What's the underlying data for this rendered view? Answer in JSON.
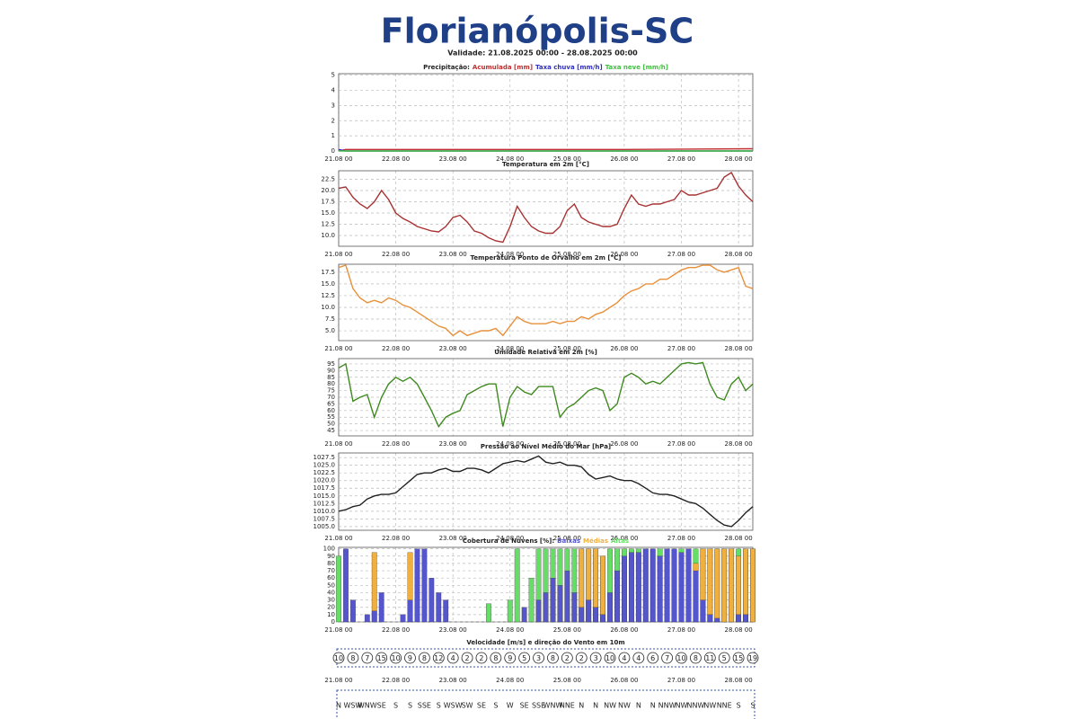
{
  "header": {
    "title": "Florianópolis-SC",
    "subtitle": "Validade: 21.08.2025 00:00 - 28.08.2025 00:00"
  },
  "chart_data": [
    {
      "type": "line",
      "title": "Precipitação:",
      "legend": "title",
      "x": [
        0,
        3,
        120,
        174
      ],
      "xlim": [
        0,
        174
      ],
      "xticks": [
        {
          "value": 0,
          "label": "21.08 00"
        },
        {
          "value": 24,
          "label": "22.08 00"
        },
        {
          "value": 48,
          "label": "23.08 00"
        },
        {
          "value": 72,
          "label": "24.08 00"
        },
        {
          "value": 96,
          "label": "25.08 00"
        },
        {
          "value": 120,
          "label": "26.08 00"
        },
        {
          "value": 144,
          "label": "27.08 00"
        },
        {
          "value": 168,
          "label": "28.08 00"
        }
      ],
      "ylim": [
        0,
        5.1
      ],
      "yticks": [
        0,
        1,
        2,
        3,
        4,
        5
      ],
      "grid": true,
      "series": [
        {
          "name": "Acumulada [mm]",
          "color": "#c03030",
          "values": [
            0,
            0.1,
            0.1,
            0.15
          ]
        },
        {
          "name": "Taxa chuva [mm/h]",
          "color": "#3030c0",
          "values": [
            0.1,
            0,
            0,
            0
          ]
        },
        {
          "name": "Taxa neve [mm/h]",
          "color": "#40c040",
          "values": [
            0,
            0,
            0,
            0
          ]
        }
      ]
    },
    {
      "type": "line",
      "title": "Temperatura em 2m [°C]",
      "color": "#a83232",
      "x": [
        0,
        3,
        6,
        9,
        12,
        15,
        18,
        21,
        24,
        27,
        30,
        33,
        36,
        39,
        42,
        45,
        48,
        51,
        54,
        57,
        60,
        63,
        66,
        69,
        72,
        75,
        78,
        81,
        84,
        87,
        90,
        93,
        96,
        99,
        102,
        105,
        108,
        111,
        114,
        117,
        120,
        123,
        126,
        129,
        132,
        135,
        138,
        141,
        144,
        147,
        150,
        153,
        156,
        159,
        162,
        165,
        168,
        171,
        174
      ],
      "xlim": [
        0,
        174
      ],
      "xticks": [
        {
          "value": 0,
          "label": "21.08 00"
        },
        {
          "value": 24,
          "label": "22.08 00"
        },
        {
          "value": 48,
          "label": "23.08 00"
        },
        {
          "value": 72,
          "label": "24.08 00"
        },
        {
          "value": 96,
          "label": "25.08 00"
        },
        {
          "value": 120,
          "label": "26.08 00"
        },
        {
          "value": 144,
          "label": "27.08 00"
        },
        {
          "value": 168,
          "label": "28.08 00"
        }
      ],
      "ylim": [
        7.6,
        24.4
      ],
      "yticks": [
        {
          "value": 10,
          "label": "10.0"
        },
        12.5,
        {
          "value": 15,
          "label": "15.0"
        },
        17.5,
        {
          "value": 20,
          "label": "20.0"
        },
        22.5
      ],
      "grid": true,
      "values": [
        20.5,
        20.8,
        18.5,
        17,
        16,
        17.5,
        20,
        18,
        15,
        13.8,
        13,
        12,
        11.5,
        11,
        10.8,
        12,
        14,
        14.5,
        13,
        11,
        10.5,
        9.5,
        8.8,
        8.5,
        12,
        16.5,
        14,
        12,
        11,
        10.5,
        10.5,
        12,
        15.5,
        17,
        14,
        13,
        12.5,
        12,
        12,
        12.5,
        16,
        19,
        17,
        16.5,
        17,
        17,
        17.5,
        18,
        20,
        19,
        19,
        19.5,
        20,
        20.5,
        23,
        24,
        21,
        19,
        17.5
      ]
    },
    {
      "type": "line",
      "title": "Temperatura Ponto de Orvalho em 2m [°C]",
      "color": "#e8903a",
      "x": [
        0,
        3,
        6,
        9,
        12,
        15,
        18,
        21,
        24,
        27,
        30,
        33,
        36,
        39,
        42,
        45,
        48,
        51,
        54,
        57,
        60,
        63,
        66,
        69,
        72,
        75,
        78,
        81,
        84,
        87,
        90,
        93,
        96,
        99,
        102,
        105,
        108,
        111,
        114,
        117,
        120,
        123,
        126,
        129,
        132,
        135,
        138,
        141,
        144,
        147,
        150,
        153,
        156,
        159,
        162,
        165,
        168,
        171,
        174
      ],
      "xlim": [
        0,
        174
      ],
      "xticks": [
        {
          "value": 0,
          "label": "21.08 00"
        },
        {
          "value": 24,
          "label": "22.08 00"
        },
        {
          "value": 48,
          "label": "23.08 00"
        },
        {
          "value": 72,
          "label": "24.08 00"
        },
        {
          "value": 96,
          "label": "25.08 00"
        },
        {
          "value": 120,
          "label": "26.08 00"
        },
        {
          "value": 144,
          "label": "27.08 00"
        },
        {
          "value": 168,
          "label": "28.08 00"
        }
      ],
      "ylim": [
        2.9,
        19.2
      ],
      "yticks": [
        {
          "value": 5,
          "label": "5.0"
        },
        7.5,
        {
          "value": 10,
          "label": "10.0"
        },
        12.5,
        {
          "value": 15,
          "label": "15.0"
        },
        17.5
      ],
      "grid": true,
      "values": [
        18.5,
        19,
        14,
        12,
        11,
        11.5,
        11,
        12,
        11.5,
        10.5,
        10,
        9,
        8,
        7,
        6,
        5.5,
        4,
        5,
        4,
        4.5,
        5,
        5,
        5.5,
        4,
        6,
        8,
        7,
        6.5,
        6.5,
        6.5,
        7,
        6.5,
        7,
        7,
        8,
        7.5,
        8.5,
        9,
        10,
        11,
        12.5,
        13.5,
        14,
        15,
        15,
        16,
        16,
        17,
        18,
        18.5,
        18.5,
        19,
        19,
        18,
        17.5,
        18,
        18.5,
        14.5,
        14
      ]
    },
    {
      "type": "line",
      "title": "Umidade Relativa em 2m [%]",
      "color": "#3f8a1f",
      "x": [
        0,
        3,
        6,
        9,
        12,
        15,
        18,
        21,
        24,
        27,
        30,
        33,
        36,
        39,
        42,
        45,
        48,
        51,
        54,
        57,
        60,
        63,
        66,
        69,
        72,
        75,
        78,
        81,
        84,
        87,
        90,
        93,
        96,
        99,
        102,
        105,
        108,
        111,
        114,
        117,
        120,
        123,
        126,
        129,
        132,
        135,
        138,
        141,
        144,
        147,
        150,
        153,
        156,
        159,
        162,
        165,
        168,
        171,
        174
      ],
      "xlim": [
        0,
        174
      ],
      "xticks": [
        {
          "value": 0,
          "label": "21.08 00"
        },
        {
          "value": 24,
          "label": "22.08 00"
        },
        {
          "value": 48,
          "label": "23.08 00"
        },
        {
          "value": 72,
          "label": "24.08 00"
        },
        {
          "value": 96,
          "label": "25.08 00"
        },
        {
          "value": 120,
          "label": "26.08 00"
        },
        {
          "value": 144,
          "label": "27.08 00"
        },
        {
          "value": 168,
          "label": "28.08 00"
        }
      ],
      "ylim": [
        41,
        99
      ],
      "yticks": [
        45,
        50,
        55,
        60,
        65,
        70,
        75,
        80,
        85,
        90,
        95
      ],
      "grid": true,
      "values": [
        92,
        95,
        67,
        70,
        72,
        55,
        70,
        80,
        85,
        82,
        85,
        80,
        70,
        60,
        48,
        55,
        58,
        60,
        72,
        75,
        78,
        80,
        80,
        48,
        70,
        78,
        74,
        72,
        78,
        78,
        78,
        55,
        62,
        65,
        70,
        75,
        77,
        75,
        60,
        65,
        85,
        88,
        85,
        80,
        82,
        80,
        85,
        90,
        95,
        96,
        95,
        96,
        80,
        70,
        68,
        80,
        85,
        75,
        80
      ]
    },
    {
      "type": "line",
      "title": "Pressão ao Nível Médio do Mar [hPa]",
      "color": "#222222",
      "x": [
        0,
        3,
        6,
        9,
        12,
        15,
        18,
        21,
        24,
        27,
        30,
        33,
        36,
        39,
        42,
        45,
        48,
        51,
        54,
        57,
        60,
        63,
        66,
        69,
        72,
        75,
        78,
        81,
        84,
        87,
        90,
        93,
        96,
        99,
        102,
        105,
        108,
        111,
        114,
        117,
        120,
        123,
        126,
        129,
        132,
        135,
        138,
        141,
        144,
        147,
        150,
        153,
        156,
        159,
        162,
        165,
        168,
        171,
        174
      ],
      "xlim": [
        0,
        174
      ],
      "xticks": [
        {
          "value": 0,
          "label": "21.08 00"
        },
        {
          "value": 24,
          "label": "22.08 00"
        },
        {
          "value": 48,
          "label": "23.08 00"
        },
        {
          "value": 72,
          "label": "24.08 00"
        },
        {
          "value": 96,
          "label": "25.08 00"
        },
        {
          "value": 120,
          "label": "26.08 00"
        },
        {
          "value": 144,
          "label": "27.08 00"
        },
        {
          "value": 168,
          "label": "28.08 00"
        }
      ],
      "ylim": [
        1003.8,
        1029
      ],
      "yticks": [
        {
          "value": 1005,
          "label": "1005.0"
        },
        1007.5,
        {
          "value": 1010,
          "label": "1010.0"
        },
        1012.5,
        {
          "value": 1015,
          "label": "1015.0"
        },
        1017.5,
        {
          "value": 1020,
          "label": "1020.0"
        },
        1022.5,
        {
          "value": 1025,
          "label": "1025.0"
        },
        1027.5
      ],
      "grid": true,
      "values": [
        1010,
        1010.5,
        1011.5,
        1012,
        1014,
        1015,
        1015.5,
        1015.5,
        1016,
        1018,
        1020,
        1022,
        1022.5,
        1022.5,
        1023.5,
        1024,
        1023,
        1023,
        1024,
        1024,
        1023.5,
        1022.5,
        1024,
        1025.5,
        1026,
        1026.5,
        1026,
        1027,
        1028,
        1026,
        1025.5,
        1026,
        1025,
        1025,
        1024.5,
        1022,
        1020.5,
        1021,
        1021.5,
        1020.5,
        1020,
        1020,
        1019,
        1017.5,
        1016,
        1015.5,
        1015.5,
        1015,
        1014,
        1013,
        1012.5,
        1011,
        1009,
        1007,
        1005.5,
        1005,
        1007,
        1009.5,
        1011.5
      ]
    },
    {
      "type": "bar",
      "title": "Cobertura de Nuvens [%]:",
      "legend": "title",
      "x": [
        0,
        3,
        6,
        9,
        12,
        15,
        18,
        21,
        24,
        27,
        30,
        33,
        36,
        39,
        42,
        45,
        48,
        51,
        54,
        57,
        60,
        63,
        66,
        69,
        72,
        75,
        78,
        81,
        84,
        87,
        90,
        93,
        96,
        99,
        102,
        105,
        108,
        111,
        114,
        117,
        120,
        123,
        126,
        129,
        132,
        135,
        138,
        141,
        144,
        147,
        150,
        153,
        156,
        159,
        162,
        165,
        168,
        171,
        174
      ],
      "xlim": [
        0,
        174
      ],
      "xticks": [
        {
          "value": 0,
          "label": "21.08 00"
        },
        {
          "value": 24,
          "label": "22.08 00"
        },
        {
          "value": 48,
          "label": "23.08 00"
        },
        {
          "value": 72,
          "label": "24.08 00"
        },
        {
          "value": 96,
          "label": "25.08 00"
        },
        {
          "value": 120,
          "label": "26.08 00"
        },
        {
          "value": 144,
          "label": "27.08 00"
        },
        {
          "value": 168,
          "label": "28.08 00"
        }
      ],
      "ylim": [
        0,
        102
      ],
      "yticks": [
        0,
        10,
        20,
        30,
        40,
        50,
        60,
        70,
        80,
        90,
        100
      ],
      "grid": true,
      "series": [
        {
          "name": "Altas",
          "color": "#66dd66",
          "values": [
            90,
            0,
            0,
            0,
            0,
            0,
            0,
            0,
            0,
            0,
            0,
            0,
            0,
            0,
            0,
            0,
            0,
            0,
            0,
            0,
            0,
            25,
            0,
            0,
            30,
            100,
            0,
            60,
            100,
            100,
            100,
            100,
            100,
            100,
            100,
            100,
            100,
            90,
            100,
            100,
            100,
            100,
            100,
            100,
            100,
            100,
            100,
            100,
            100,
            100,
            100,
            100,
            100,
            100,
            100,
            100,
            100,
            100,
            100
          ]
        },
        {
          "name": "Médias",
          "color": "#f0b040",
          "values": [
            0,
            0,
            0,
            0,
            0,
            95,
            0,
            0,
            0,
            0,
            95,
            0,
            0,
            0,
            0,
            0,
            0,
            0,
            0,
            0,
            0,
            0,
            0,
            0,
            0,
            0,
            0,
            0,
            0,
            0,
            0,
            0,
            0,
            0,
            100,
            100,
            100,
            90,
            10,
            0,
            0,
            0,
            0,
            0,
            0,
            0,
            0,
            0,
            0,
            0,
            80,
            100,
            100,
            100,
            100,
            100,
            90,
            100,
            100
          ]
        },
        {
          "name": "Baixas",
          "color": "#5555cc",
          "values": [
            0,
            100,
            30,
            0,
            10,
            15,
            40,
            0,
            0,
            10,
            30,
            100,
            100,
            60,
            40,
            30,
            0,
            0,
            0,
            0,
            0,
            0,
            0,
            0,
            0,
            0,
            20,
            0,
            30,
            40,
            60,
            50,
            70,
            40,
            20,
            30,
            20,
            10,
            40,
            70,
            90,
            95,
            95,
            100,
            100,
            90,
            100,
            100,
            95,
            100,
            70,
            30,
            10,
            5,
            0,
            0,
            10,
            10,
            0
          ]
        }
      ]
    },
    {
      "type": "wind",
      "title": "Velocidade [m/s] e direção do Vento em 10m",
      "x": [
        0,
        6,
        12,
        18,
        24,
        30,
        36,
        42,
        48,
        54,
        60,
        66,
        72,
        78,
        84,
        90,
        96,
        102,
        108,
        114,
        120,
        126,
        132,
        138,
        144,
        150,
        156,
        162,
        168,
        174
      ],
      "xlim": [
        0,
        174
      ],
      "xticks": [
        {
          "value": 0,
          "label": "21.08 00"
        },
        {
          "value": 24,
          "label": "22.08 00"
        },
        {
          "value": 48,
          "label": "23.08 00"
        },
        {
          "value": 72,
          "label": "24.08 00"
        },
        {
          "value": 96,
          "label": "25.08 00"
        },
        {
          "value": 120,
          "label": "26.08 00"
        },
        {
          "value": 144,
          "label": "27.08 00"
        },
        {
          "value": 168,
          "label": "28.08 00"
        }
      ],
      "values": [
        10,
        8,
        7,
        15,
        10,
        9,
        8,
        12,
        4,
        2,
        2,
        8,
        9,
        5,
        3,
        8,
        2,
        2,
        3,
        10,
        4,
        4,
        6,
        7,
        10,
        8,
        11,
        5,
        15,
        19
      ],
      "directions": [
        "N",
        "WSW",
        "WNW",
        "SE",
        "S",
        "S",
        "SSE",
        "S",
        "WSW",
        "SW",
        "SE",
        "S",
        "W",
        "SE",
        "SSE",
        "WNW",
        "NNE",
        "N",
        "N",
        "NW",
        "NW",
        "N",
        "N",
        "NNW",
        "NW",
        "NNW",
        "NW",
        "NNE",
        "S",
        "S"
      ]
    }
  ]
}
